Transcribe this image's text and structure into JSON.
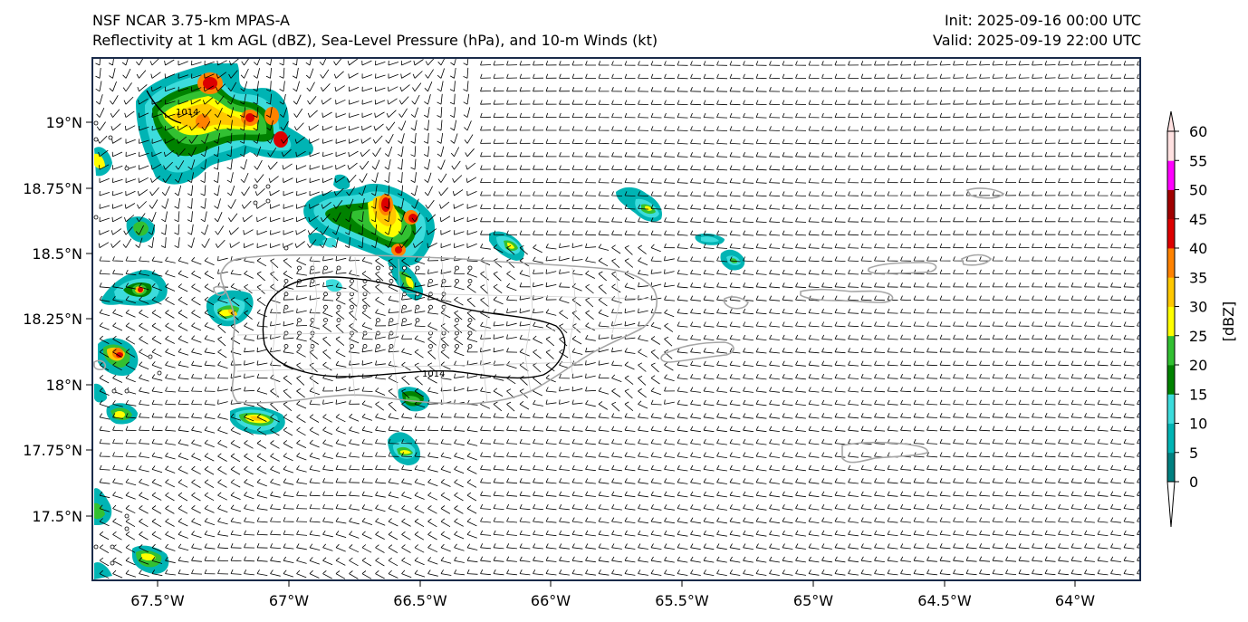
{
  "header": {
    "title_line1": "NSF NCAR 3.75-km MPAS-A",
    "title_line2": "Reflectivity at 1 km AGL (dBZ), Sea-Level Pressure (hPa), and 10-m Winds (kt)",
    "init": "Init: 2025-09-16 00:00 UTC",
    "valid": "Valid: 2025-09-19 22:00 UTC"
  },
  "map": {
    "lon_labels": [
      "67.5°W",
      "67°W",
      "66.5°W",
      "66°W",
      "65.5°W",
      "65°W",
      "64.5°W",
      "64°W"
    ],
    "lat_labels": [
      "19°N",
      "18.75°N",
      "18.5°N",
      "18.25°N",
      "18°N",
      "17.75°N",
      "17.5°N"
    ],
    "isobar_label_1": "1014",
    "isobar_label_2": "1014",
    "coastline_color": "#a6a6a6",
    "wind_barb_color": "#000000"
  },
  "colorbar": {
    "label": "[dBZ]",
    "ticks": [
      "0",
      "5",
      "10",
      "15",
      "20",
      "25",
      "30",
      "35",
      "40",
      "45",
      "50",
      "55",
      "60"
    ],
    "colors": [
      "#008080",
      "#00b4b4",
      "#3cdcdc",
      "#008200",
      "#32c032",
      "#ffff00",
      "#ffc800",
      "#ff8200",
      "#dc0000",
      "#a00000",
      "#ff00ff",
      "#ffe1e1"
    ]
  }
}
